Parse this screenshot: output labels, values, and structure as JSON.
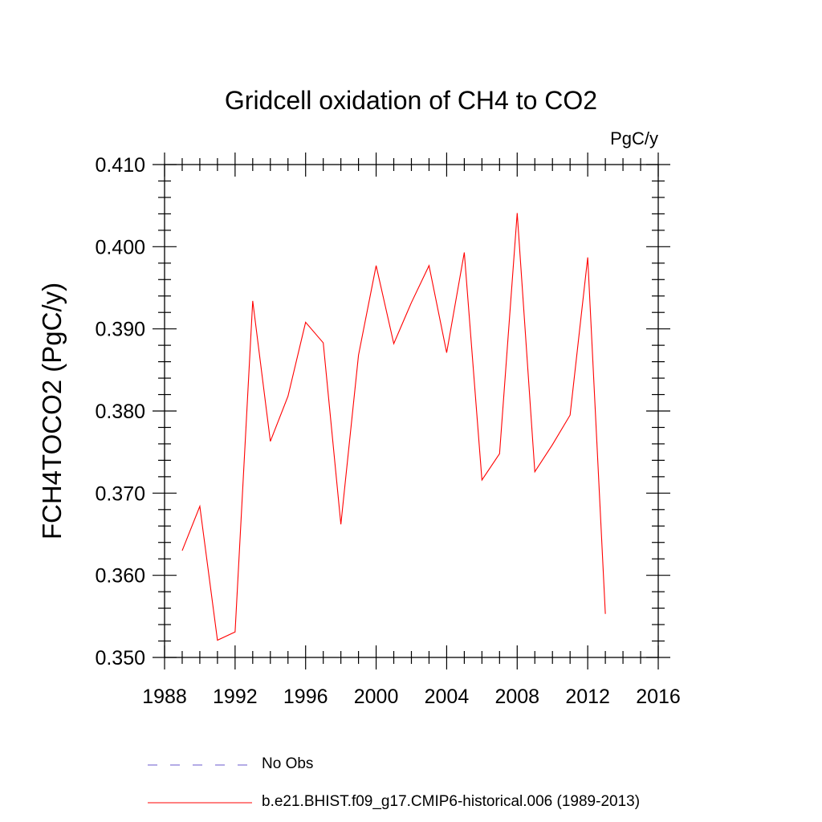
{
  "chart_data": {
    "type": "line",
    "title": "Gridcell oxidation of CH4 to CO2",
    "units": "PgC/y",
    "ylabel": "FCH4TOCO2  (PgC/y)",
    "xlabel": "",
    "xlim": [
      1988,
      2016
    ],
    "ylim": [
      0.35,
      0.41
    ],
    "xticks": [
      1988,
      1992,
      1996,
      2000,
      2004,
      2008,
      2012,
      2016
    ],
    "yticks": [
      0.35,
      0.36,
      0.37,
      0.38,
      0.39,
      0.4,
      0.41
    ],
    "ytick_labels": [
      "0.350",
      "0.360",
      "0.370",
      "0.380",
      "0.390",
      "0.400",
      "0.410"
    ],
    "grid": false,
    "series": [
      {
        "name": "b.e21.BHIST.f09_g17.CMIP6-historical.006 (1989-2013)",
        "color": "#ff0000",
        "x": [
          1989,
          1990,
          1991,
          1992,
          1993,
          1994,
          1995,
          1996,
          1997,
          1998,
          1999,
          2000,
          2001,
          2002,
          2003,
          2004,
          2005,
          2006,
          2007,
          2008,
          2009,
          2010,
          2011,
          2012,
          2013
        ],
        "values": [
          0.363,
          0.3684,
          0.3521,
          0.3531,
          0.3934,
          0.3763,
          0.3818,
          0.3908,
          0.3883,
          0.3662,
          0.3868,
          0.3977,
          0.3882,
          0.3932,
          0.3977,
          0.3871,
          0.3993,
          0.3716,
          0.3748,
          0.4041,
          0.3726,
          0.3759,
          0.3795,
          0.3987,
          0.3553
        ]
      }
    ],
    "legend": [
      {
        "label": "No Obs",
        "color": "#6a5acd",
        "style": "dashed"
      },
      {
        "label": "b.e21.BHIST.f09_g17.CMIP6-historical.006 (1989-2013)",
        "color": "#ff0000",
        "style": "solid"
      }
    ]
  }
}
